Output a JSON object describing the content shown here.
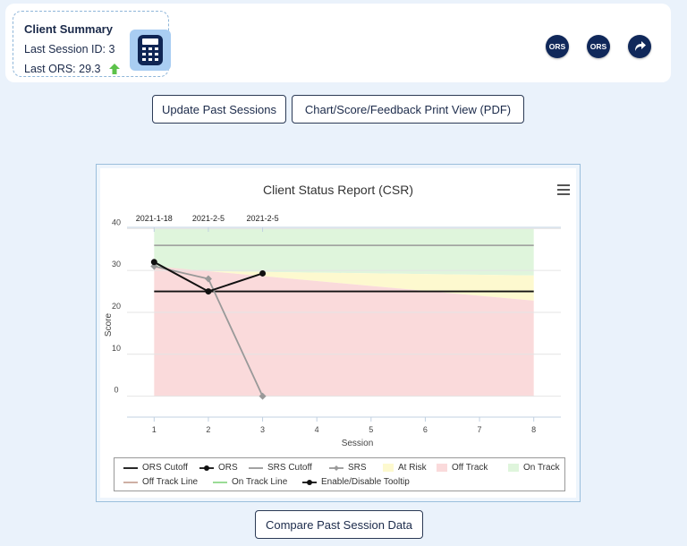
{
  "summary": {
    "title": "Client Summary",
    "last_session": "Last Session ID: 3",
    "last_ors": "Last ORS: 29.3"
  },
  "header_icons": [
    {
      "label": "ORS",
      "icon": "ors-badge-icon"
    },
    {
      "label": "ORS",
      "icon": "ors-badge-icon"
    },
    {
      "label": "",
      "icon": "share-arrow-icon"
    }
  ],
  "buttons": {
    "update": "Update Past Sessions",
    "print": "Chart/Score/Feedback Print View (PDF)",
    "compare": "Compare Past Session Data"
  },
  "colors": {
    "on_track": "#dff5dc",
    "at_risk": "#fdf9cf",
    "off_track": "#fadadb",
    "ors_line": "#111111",
    "srs_line": "#999999",
    "srs_cutoff": "#999999",
    "arrow_up": "#5cc24a"
  },
  "chart_data": {
    "type": "line",
    "title": "Client Status Report (CSR)",
    "xlabel": "Session",
    "ylabel": "Score",
    "x_ticks": [
      1,
      2,
      3,
      4,
      5,
      6,
      7,
      8
    ],
    "y_ticks": [
      0,
      10,
      20,
      30,
      40
    ],
    "xlim": [
      0.5,
      8.5
    ],
    "ylim": [
      -5,
      42
    ],
    "top_dates": [
      {
        "x": 1,
        "label": "2021-1-18"
      },
      {
        "x": 2,
        "label": "2021-2-5"
      },
      {
        "x": 3,
        "label": "2021-2-5"
      }
    ],
    "bands": {
      "x_range": [
        1,
        8
      ],
      "upper": 40,
      "on_track_lower": [
        30,
        28.8
      ],
      "off_track_upper": [
        31,
        22.8
      ]
    },
    "ors_cutoff": 25,
    "srs_cutoff": 36,
    "series": [
      {
        "name": "ORS",
        "x": [
          1,
          2,
          3
        ],
        "y": [
          32,
          25,
          29.3
        ]
      },
      {
        "name": "SRS",
        "x": [
          1,
          2,
          3
        ],
        "y": [
          31,
          28,
          0
        ]
      }
    ],
    "legend": [
      {
        "label": "ORS Cutoff",
        "kind": "line",
        "color": "#111111"
      },
      {
        "label": "ORS",
        "kind": "line-dot",
        "color": "#111111"
      },
      {
        "label": "SRS Cutoff",
        "kind": "line",
        "color": "#999999"
      },
      {
        "label": "SRS",
        "kind": "line-diamond",
        "color": "#999999"
      },
      {
        "label": "At Risk",
        "kind": "box",
        "color": "#fdf9cf"
      },
      {
        "label": "Off Track",
        "kind": "box",
        "color": "#fadadb"
      },
      {
        "label": "On Track",
        "kind": "box",
        "color": "#dff5dc"
      },
      {
        "label": "Off Track Line",
        "kind": "line",
        "color": "#c8a69a"
      },
      {
        "label": "On Track Line",
        "kind": "line",
        "color": "#8fd88a"
      },
      {
        "label": "Enable/Disable Tooltip",
        "kind": "line-dot",
        "color": "#111111"
      }
    ],
    "legend_position": "bottom"
  }
}
